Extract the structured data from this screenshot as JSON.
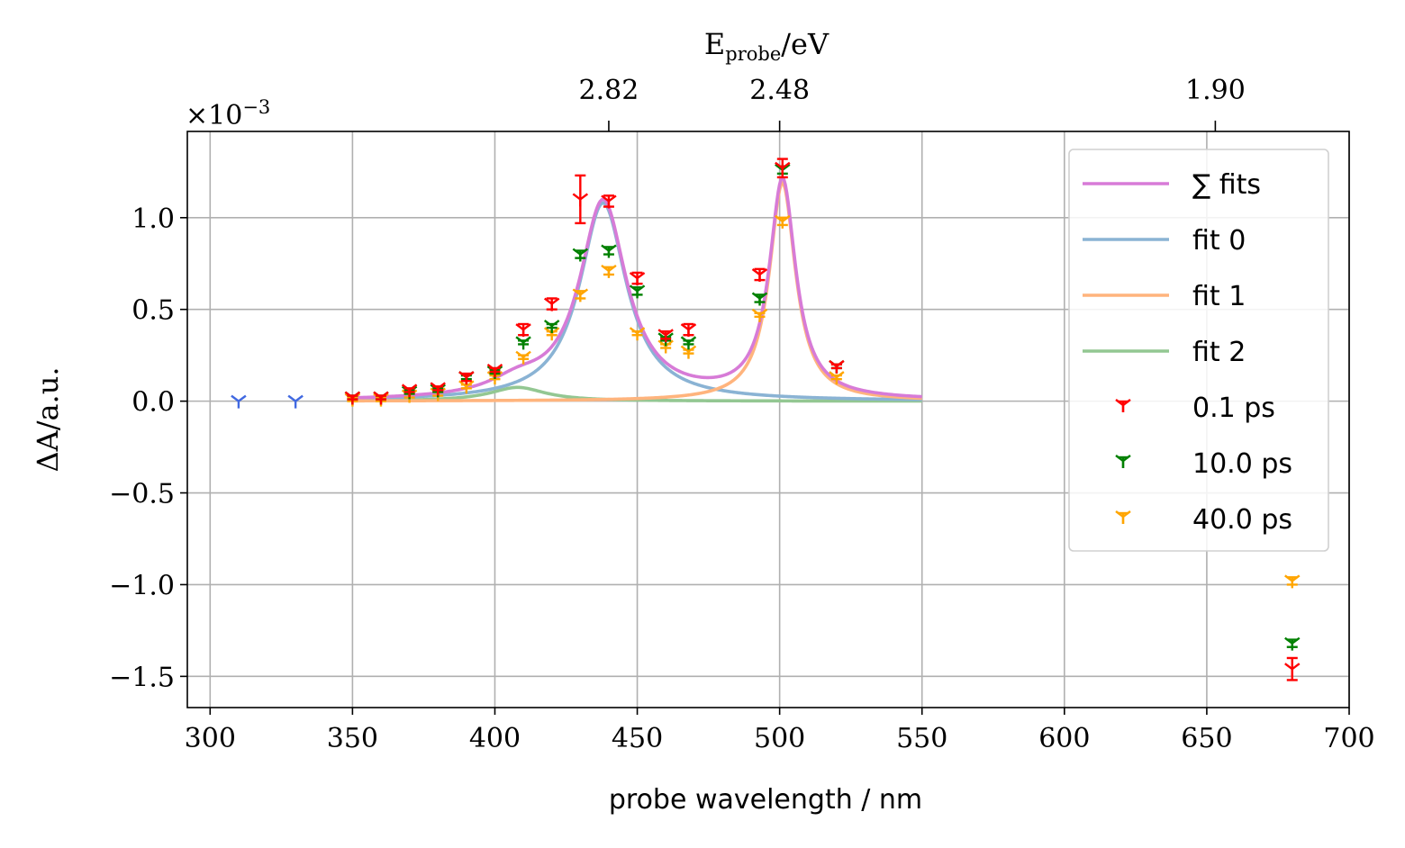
{
  "chart_data": {
    "type": "scatter",
    "xlabel": "probe wavelength / nm",
    "ylabel": "ΔA/a.u.",
    "top_axis_label_main": "E",
    "top_axis_label_sub": "probe",
    "top_axis_label_unit": "/eV",
    "scale_base": "×10",
    "scale_exp": "−3",
    "xlim": [
      292,
      700
    ],
    "ylim": [
      -1.67,
      1.47
    ],
    "grid": true,
    "legend_position": "upper right",
    "x_ticks": [
      300,
      350,
      400,
      450,
      500,
      550,
      600,
      650,
      700
    ],
    "x_tick_labels": [
      "300",
      "350",
      "400",
      "450",
      "500",
      "550",
      "600",
      "650",
      "700"
    ],
    "y_ticks": [
      -1.5,
      -1.0,
      -0.5,
      0.0,
      0.5,
      1.0
    ],
    "y_tick_labels": [
      "−1.5",
      "−1.0",
      "−0.5",
      "0.0",
      "0.5",
      "1.0"
    ],
    "top_ticks": [
      {
        "wavelength": 440,
        "label": "2.82"
      },
      {
        "wavelength": 500,
        "label": "2.48"
      },
      {
        "wavelength": 653,
        "label": "1.90"
      }
    ],
    "fits": [
      {
        "name": "∑ fits",
        "color": "#d77bd7",
        "peaks": [
          [
            438,
            1.08,
            10
          ],
          [
            501,
            1.19,
            5.6
          ],
          [
            408,
            0.075,
            12
          ]
        ]
      },
      {
        "name": "fit 0",
        "color": "#8ab3d4",
        "peaks": [
          [
            438,
            1.08,
            10
          ]
        ]
      },
      {
        "name": "fit 1",
        "color": "#ffb47d",
        "peaks": [
          [
            501,
            1.19,
            5.6
          ]
        ]
      },
      {
        "name": "fit 2",
        "color": "#93c792",
        "peaks": [
          [
            408,
            0.075,
            12
          ]
        ]
      }
    ],
    "fit_x_range": [
      350,
      550
    ],
    "series": [
      {
        "name": "0.1 ps",
        "color": "#ff0000",
        "x": [
          350,
          360,
          370,
          380,
          390,
          400,
          410,
          420,
          430,
          440,
          450,
          460,
          468,
          493,
          501,
          520,
          680
        ],
        "y": [
          0.02,
          0.02,
          0.06,
          0.07,
          0.13,
          0.17,
          0.39,
          0.53,
          1.1,
          1.09,
          0.67,
          0.36,
          0.39,
          0.69,
          1.27,
          0.19,
          -1.46
        ],
        "err": [
          0.01,
          0.01,
          0.01,
          0.01,
          0.02,
          0.01,
          0.03,
          0.03,
          0.13,
          0.03,
          0.03,
          0.02,
          0.03,
          0.03,
          0.05,
          0.01,
          0.06
        ]
      },
      {
        "name": "10.0 ps",
        "color": "#008000",
        "x": [
          350,
          360,
          370,
          380,
          390,
          400,
          410,
          420,
          430,
          440,
          450,
          460,
          468,
          493,
          501,
          520,
          680
        ],
        "y": [
          0.02,
          0.02,
          0.05,
          0.06,
          0.13,
          0.16,
          0.32,
          0.41,
          0.8,
          0.82,
          0.6,
          0.34,
          0.32,
          0.56,
          1.26,
          0.19,
          -1.32
        ],
        "err": [
          0.01,
          0.01,
          0.01,
          0.01,
          0.01,
          0.01,
          0.01,
          0.01,
          0.02,
          0.02,
          0.02,
          0.01,
          0.01,
          0.02,
          0.02,
          0.01,
          0.02
        ]
      },
      {
        "name": "40.0 ps",
        "color": "#ffa500",
        "x": [
          350,
          360,
          370,
          380,
          390,
          400,
          410,
          420,
          430,
          440,
          450,
          460,
          468,
          493,
          501,
          520,
          680
        ],
        "y": [
          0.01,
          0.01,
          0.03,
          0.04,
          0.08,
          0.13,
          0.24,
          0.37,
          0.58,
          0.71,
          0.37,
          0.3,
          0.27,
          0.47,
          0.98,
          0.13,
          -0.98
        ],
        "err": [
          0.01,
          0.01,
          0.01,
          0.01,
          0.01,
          0.01,
          0.01,
          0.01,
          0.02,
          0.02,
          0.01,
          0.01,
          0.01,
          0.01,
          0.02,
          0.01,
          0.02
        ]
      },
      {
        "name": "",
        "color": "#4169e1",
        "x": [
          310,
          330
        ],
        "y": [
          0.0,
          0.0
        ],
        "err": [
          0,
          0
        ]
      }
    ]
  }
}
